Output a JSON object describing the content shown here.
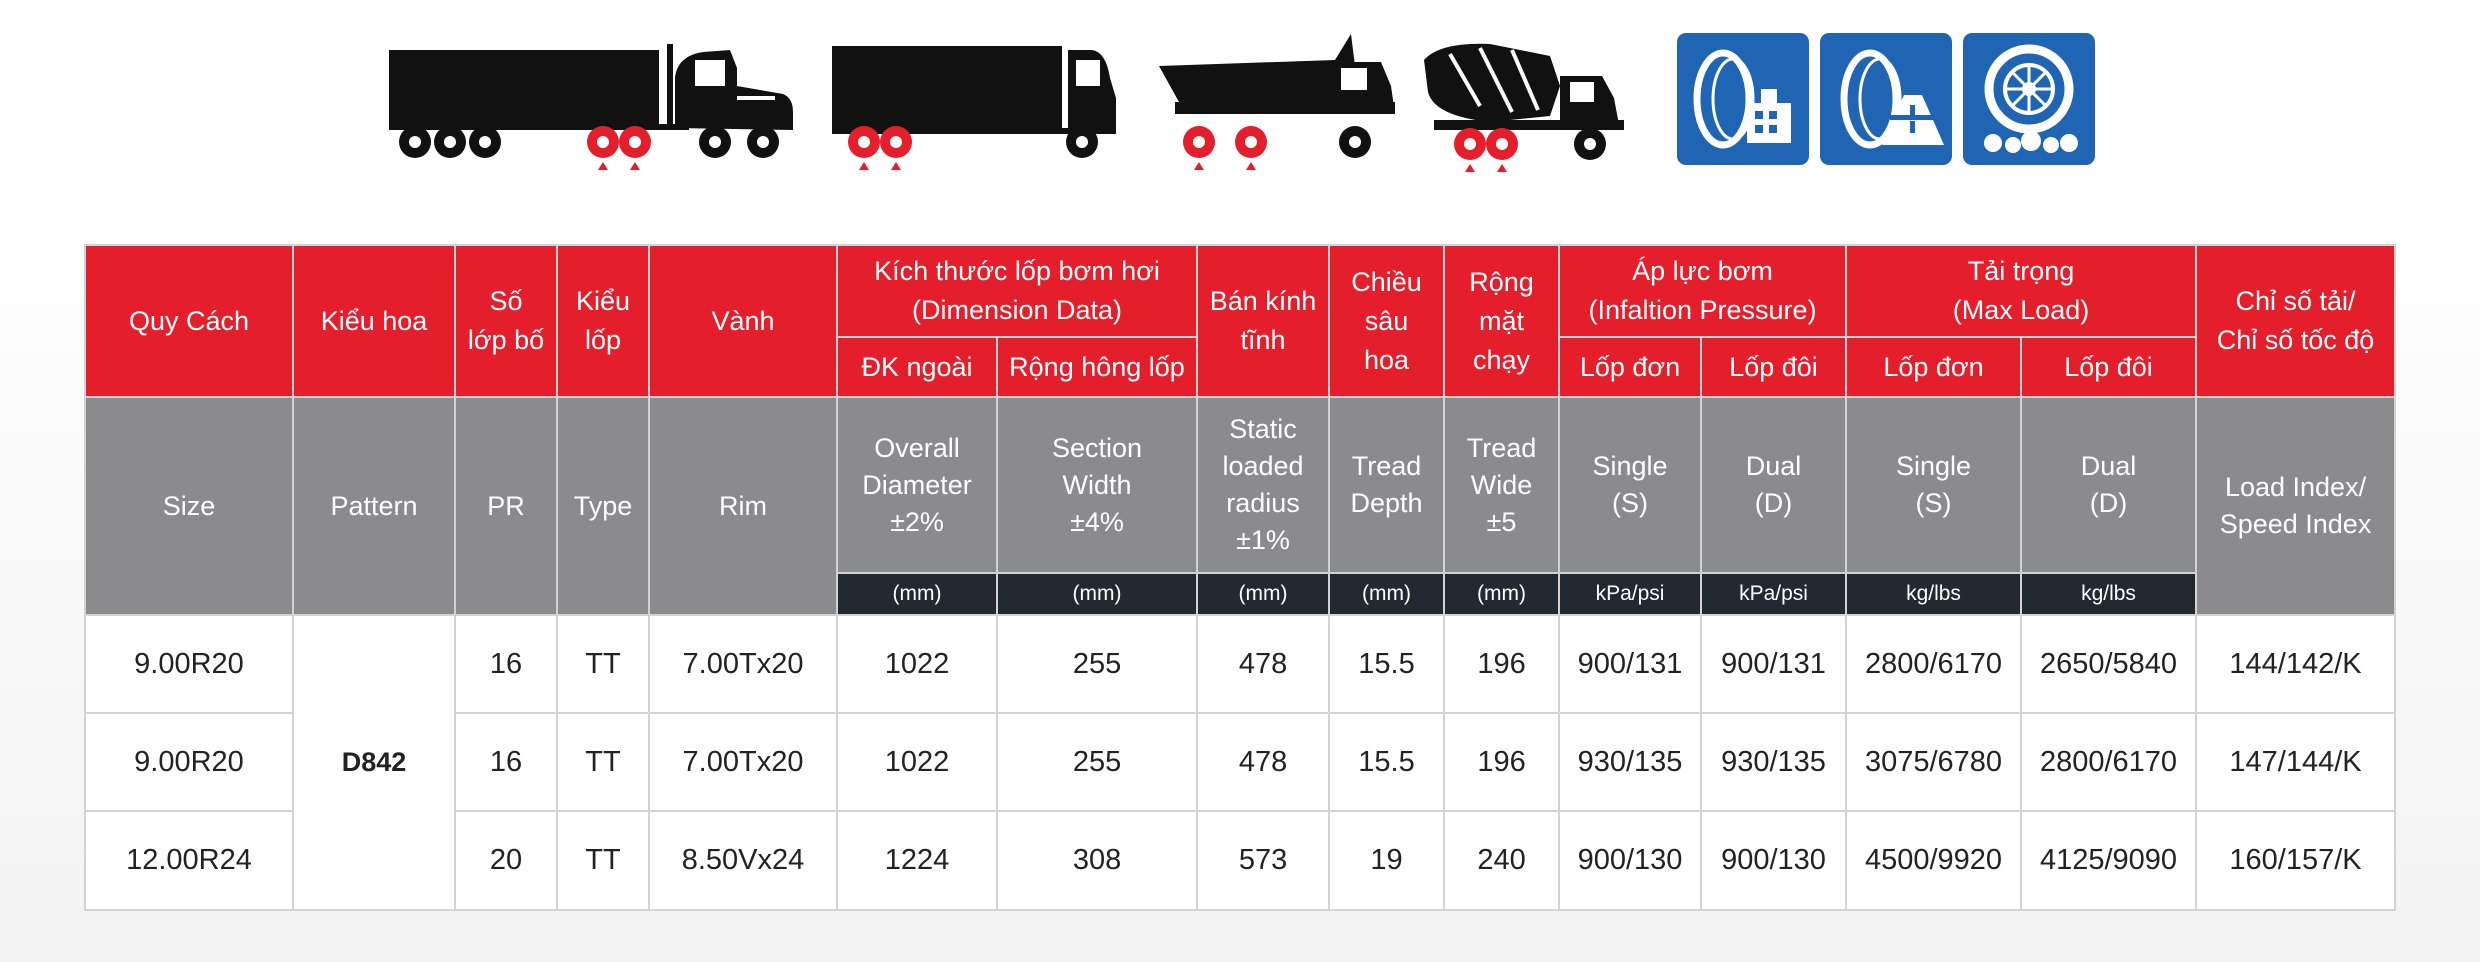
{
  "vehicle_icons": [
    "semi-truck-icon",
    "box-truck-icon",
    "dump-truck-icon",
    "mixer-truck-icon"
  ],
  "usage_icons": [
    "urban-road-tire-icon",
    "highway-tire-icon",
    "rough-terrain-tire-icon"
  ],
  "colors": {
    "header_red": "#e41e2b",
    "header_gray": "#8b8a8c",
    "unit_dark": "#222a31",
    "pattern_red": "#e41e2b",
    "icon_blue": "#1f65b4"
  },
  "header_vi": {
    "size": "Quy Cách",
    "pattern": "Kiểu hoa",
    "pr": "Số\nlớp bố",
    "type": "Kiểu\nlốp",
    "rim": "Vành",
    "dimension": "Kích thước lốp bơm hơi\n(Dimension Data)",
    "overall_diameter": "ĐK ngoài",
    "section_width": "Rộng hông lốp",
    "static_radius": "Bán kính\ntĩnh",
    "tread_depth": "Chiều\nsâu\nhoa",
    "tread_wide": "Rộng\nmặt\nchạy",
    "pressure": "Áp lực bơm\n(Infaltion Pressure)",
    "pressure_single": "Lốp đơn",
    "pressure_dual": "Lốp đôi",
    "load": "Tải trọng\n(Max Load)",
    "load_single": "Lốp đơn",
    "load_dual": "Lốp đôi",
    "index": "Chỉ số tải/\nChỉ số tốc độ"
  },
  "header_en": {
    "size": "Size",
    "pattern": "Pattern",
    "pr": "PR",
    "type": "Type",
    "rim": "Rim",
    "overall_diameter": "Overall\nDiameter\n±2%",
    "section_width": "Section\nWidth\n±4%",
    "static_radius": "Static\nloaded\nradius\n±1%",
    "tread_depth": "Tread\nDepth",
    "tread_wide": "Tread\nWide\n±5",
    "pressure_single": "Single\n(S)",
    "pressure_dual": "Dual\n(D)",
    "load_single": "Single\n(S)",
    "load_dual": "Dual\n(D)",
    "index": "Load Index/\nSpeed Index"
  },
  "units": {
    "overall_diameter": "(mm)",
    "section_width": "(mm)",
    "static_radius": "(mm)",
    "tread_depth": "(mm)",
    "tread_wide": "(mm)",
    "pressure_single": "kPa/psi",
    "pressure_dual": "kPa/psi",
    "load_single": "kg/lbs",
    "load_dual": "kg/lbs"
  },
  "pattern_name": "D842",
  "rows": [
    {
      "size": "9.00R20",
      "pr": "16",
      "type": "TT",
      "rim": "7.00Tx20",
      "od": "1022",
      "sw": "255",
      "slr": "478",
      "td": "15.5",
      "tw": "196",
      "ps": "900/131",
      "pd": "900/131",
      "ls": "2800/6170",
      "ld": "2650/5840",
      "idx": "144/142/K"
    },
    {
      "size": "9.00R20",
      "pr": "16",
      "type": "TT",
      "rim": "7.00Tx20",
      "od": "1022",
      "sw": "255",
      "slr": "478",
      "td": "15.5",
      "tw": "196",
      "ps": "930/135",
      "pd": "930/135",
      "ls": "3075/6780",
      "ld": "2800/6170",
      "idx": "147/144/K"
    },
    {
      "size": "12.00R24",
      "pr": "20",
      "type": "TT",
      "rim": "8.50Vx24",
      "od": "1224",
      "sw": "308",
      "slr": "573",
      "td": "19",
      "tw": "240",
      "ps": "900/130",
      "pd": "900/130",
      "ls": "4500/9920",
      "ld": "4125/9090",
      "idx": "160/157/K"
    }
  ]
}
